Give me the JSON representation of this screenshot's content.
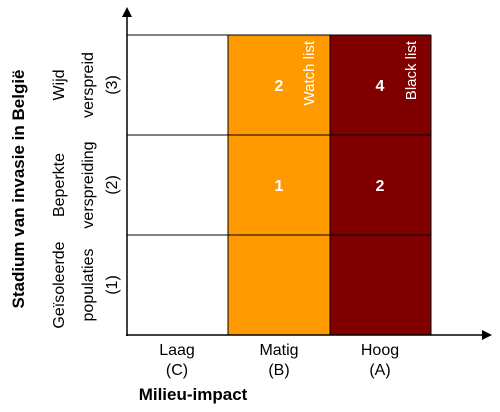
{
  "colors": {
    "low": "#ffffff",
    "moderate": "#ff9900",
    "high": "#800000",
    "grid_line": "#000000"
  },
  "y_axis_title": "Stadium van invasie in België",
  "x_axis_title": "Milieu-impact",
  "columns": [
    {
      "line1": "Laag",
      "line2": "(C)"
    },
    {
      "line1": "Matig",
      "line2": "(B)"
    },
    {
      "line1": "Hoog",
      "line2": "(A)"
    }
  ],
  "rows": [
    {
      "line1": "Wijd",
      "line2": "verspreid",
      "line3": "(3)"
    },
    {
      "line1": "Beperkte",
      "line2": "verspreiding",
      "line3": "(2)"
    },
    {
      "line1": "Geïsoleerde",
      "line2": "populaties",
      "line3": "(1)"
    }
  ],
  "cells": {
    "r0c1": "2",
    "r0c2": "4",
    "r1c1": "1",
    "r1c2": "2"
  },
  "list_labels": {
    "watch": "Watch list",
    "black": "Black list"
  }
}
